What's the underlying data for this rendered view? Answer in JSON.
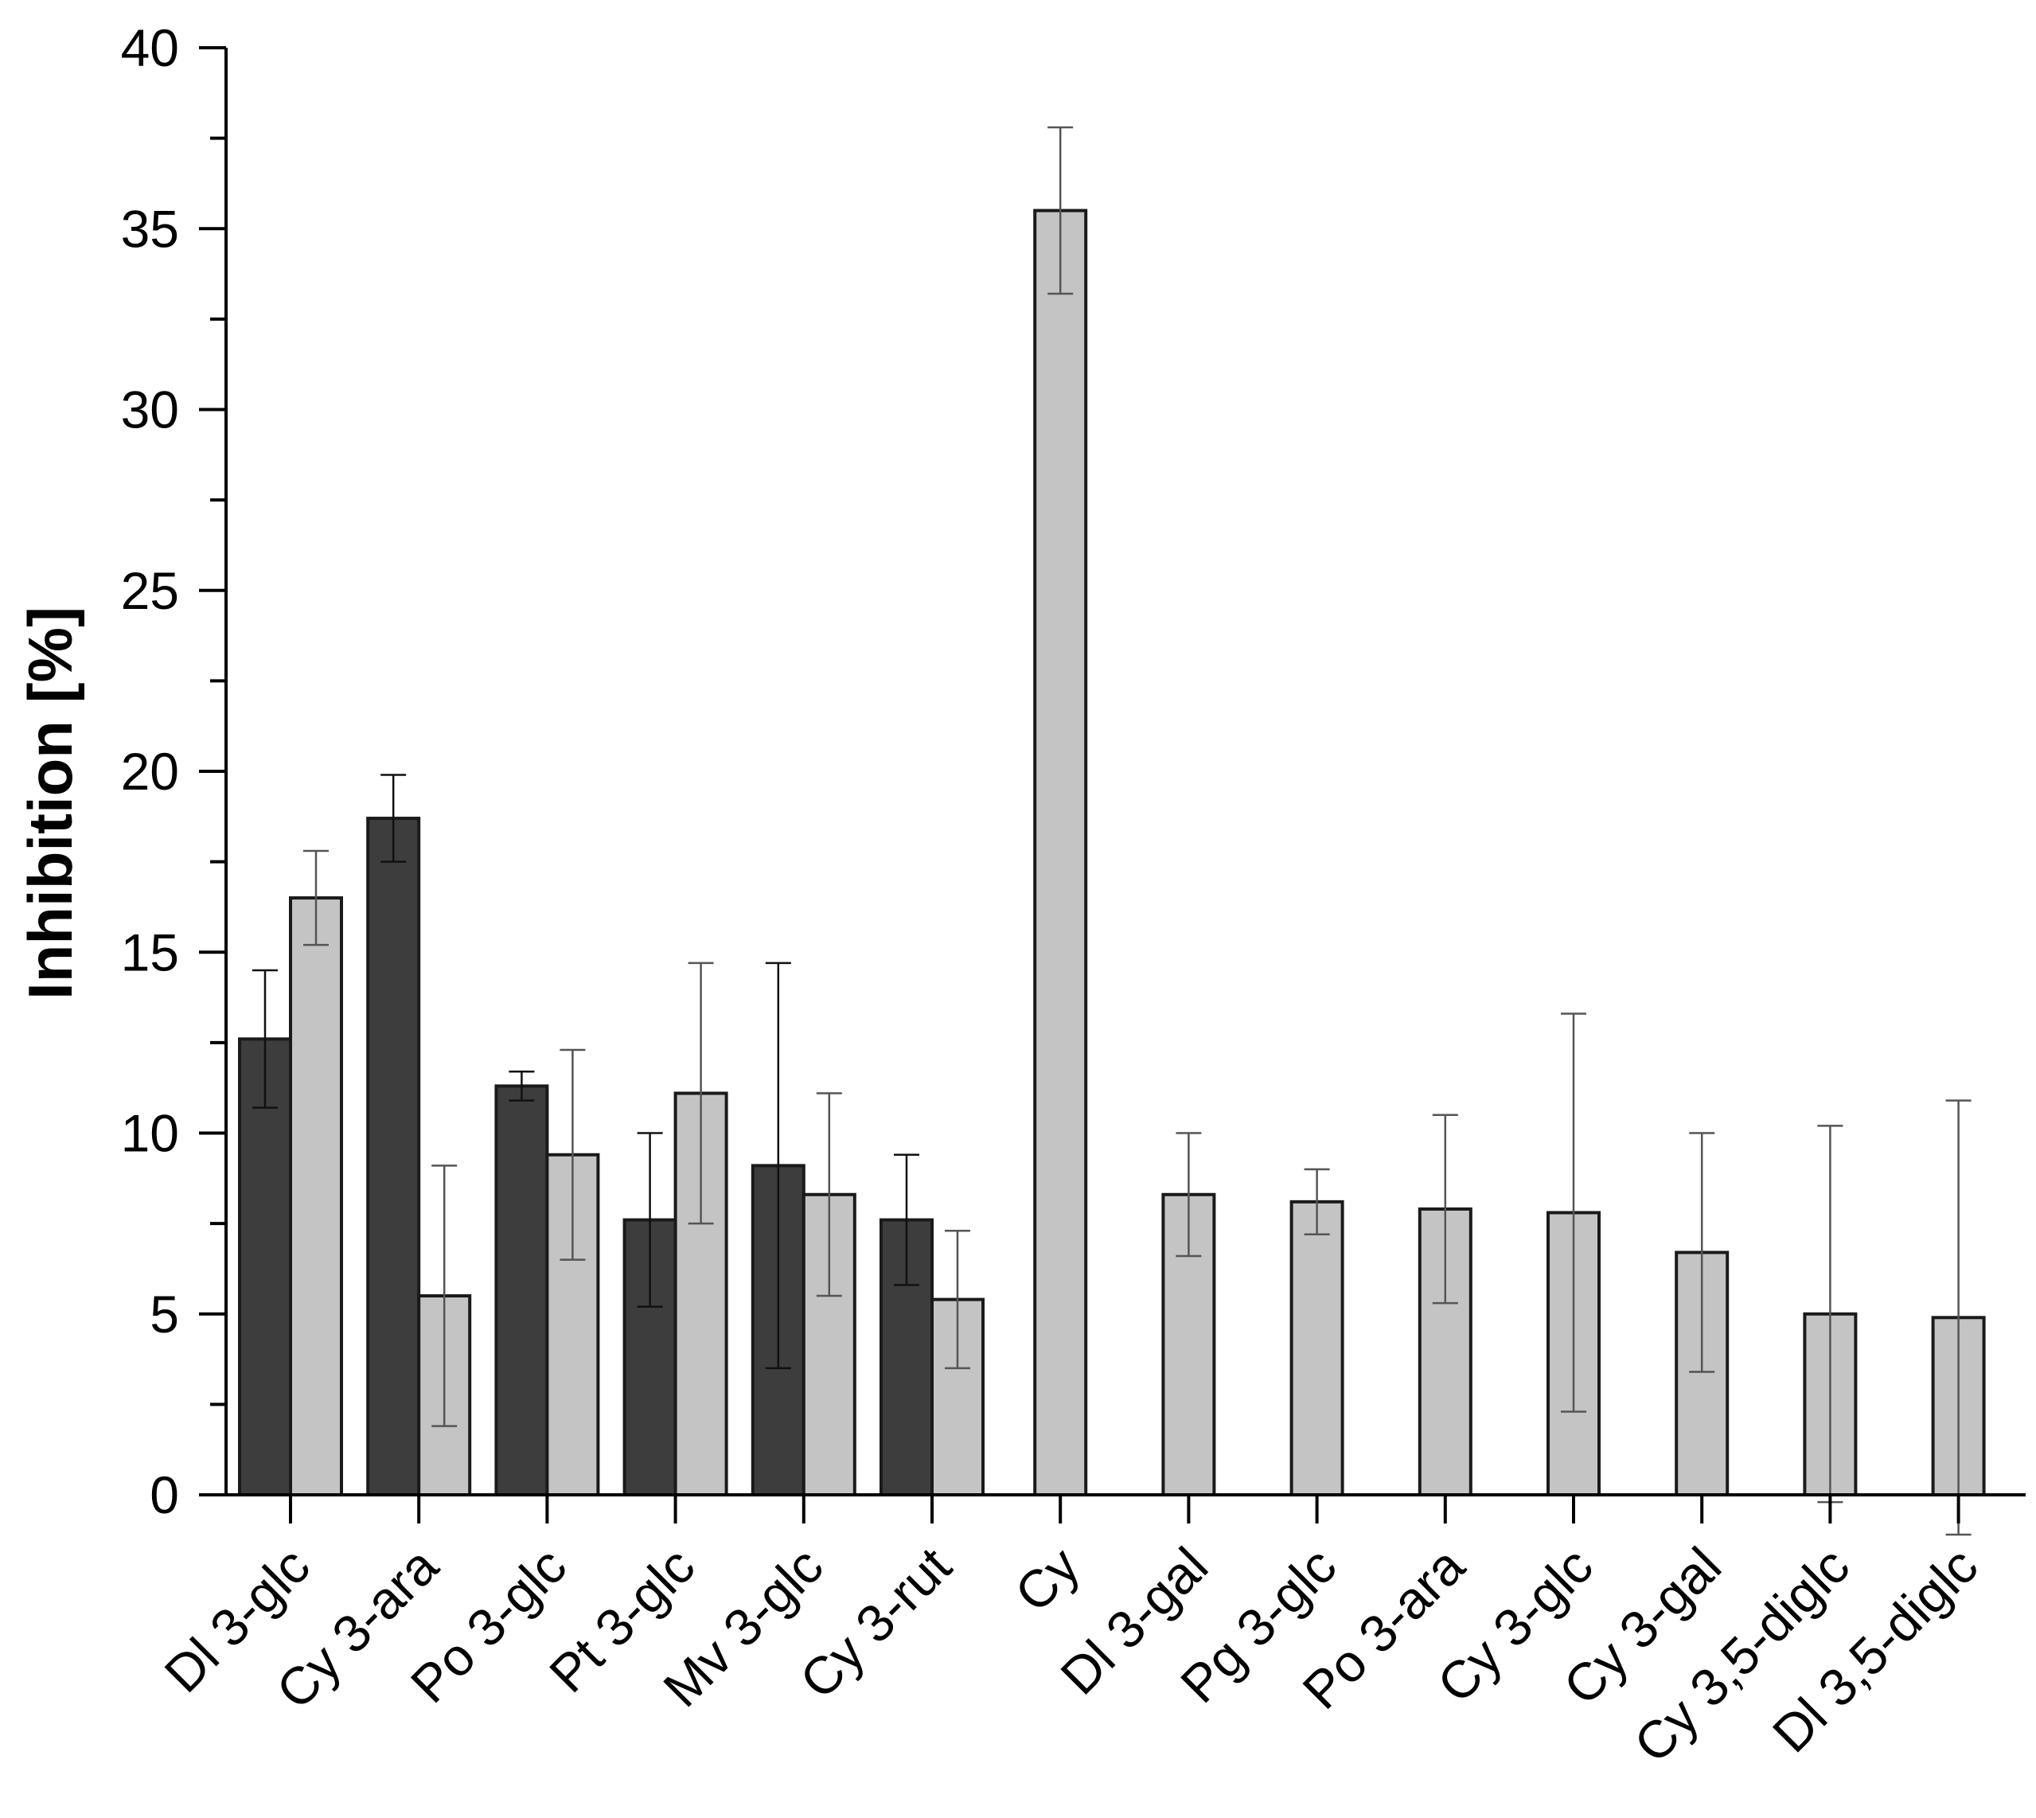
{
  "chart_data": {
    "type": "bar",
    "title": "",
    "xlabel": "",
    "ylabel": "Inhibition [%]",
    "ylim": [
      0,
      40
    ],
    "yticks": [
      "0",
      "5",
      "10",
      "15",
      "20",
      "25",
      "30",
      "35",
      "40"
    ],
    "grid": false,
    "legend": "none",
    "categories": [
      "Dl 3-glc",
      "Cy 3-ara",
      "Po 3-glc",
      "Pt 3-glc",
      "Mv 3-glc",
      "Cy 3-rut",
      "Cy",
      "Dl 3-gal",
      "Pg 3-glc",
      "Po 3-ara",
      "Cy 3-glc",
      "Cy 3-gal",
      "Cy 3,5-diglc",
      "Dl 3,5-diglc"
    ],
    "series": [
      {
        "color": "#3d3d3d",
        "values": [
          12.6,
          18.7,
          11.3,
          7.6,
          9.1,
          7.6,
          null,
          null,
          null,
          null,
          null,
          null,
          null,
          null
        ],
        "errors": [
          1.9,
          1.2,
          0.4,
          2.4,
          5.6,
          1.8,
          null,
          null,
          null,
          null,
          null,
          null,
          null,
          null
        ]
      },
      {
        "color": "#c4c4c4",
        "values": [
          16.5,
          5.5,
          9.4,
          11.1,
          8.3,
          5.4,
          35.5,
          8.3,
          8.1,
          7.9,
          7.8,
          6.7,
          5.0,
          4.9
        ],
        "errors": [
          1.3,
          3.6,
          2.9,
          3.6,
          2.8,
          1.9,
          2.3,
          1.7,
          0.9,
          2.6,
          5.5,
          3.3,
          5.2,
          6.0
        ]
      }
    ]
  }
}
